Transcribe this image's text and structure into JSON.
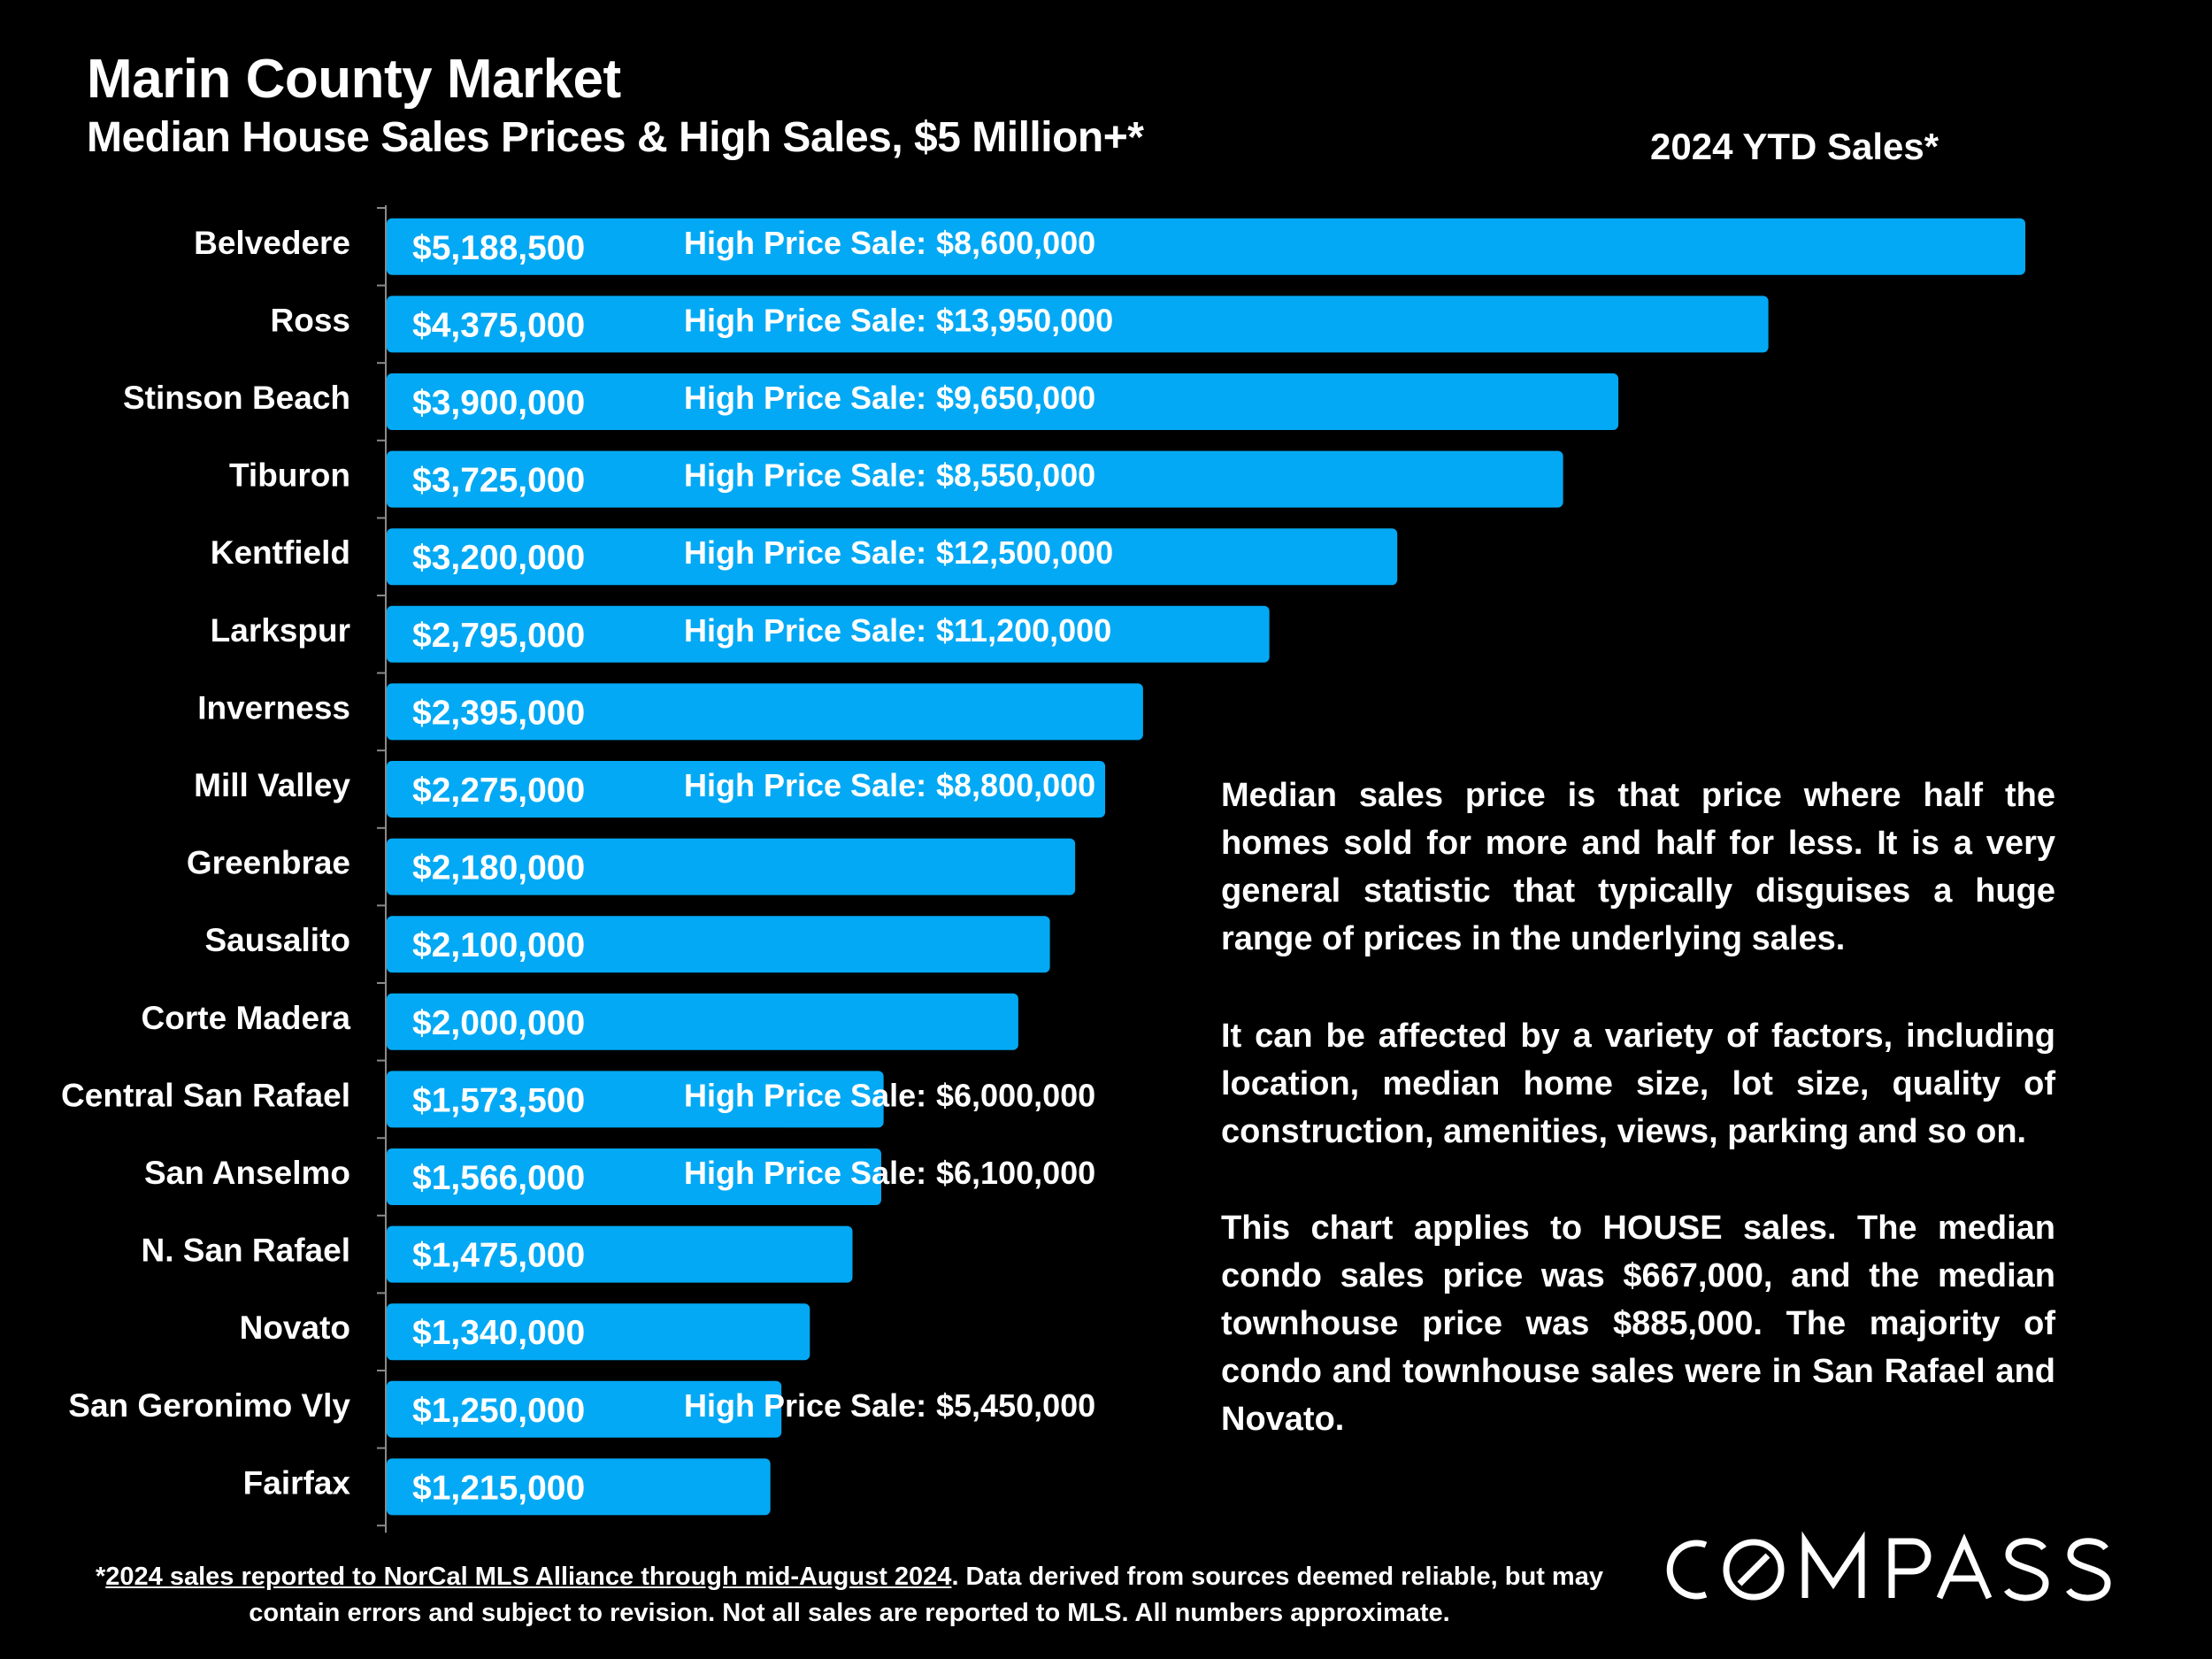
{
  "header": {
    "title": "Marin County Market",
    "subtitle": "Median House Sales Prices & High Sales, $5 Million+*",
    "ytd_label": "2024 YTD Sales*"
  },
  "colors": {
    "bar": "#03A9F4",
    "background": "#000000",
    "text": "#FFFFFF"
  },
  "chart_data": {
    "type": "bar",
    "orientation": "horizontal",
    "title": "Median House Sales Prices & High Sales, $5 Million+*",
    "series_name": "2024 YTD Sales*",
    "xlim": [
      0,
      5188500
    ],
    "high_sale_prefix": "High Price Sale:",
    "categories": [
      "Belvedere",
      "Ross",
      "Stinson Beach",
      "Tiburon",
      "Kentfield",
      "Larkspur",
      "Inverness",
      "Mill Valley",
      "Greenbrae",
      "Sausalito",
      "Corte Madera",
      "Central San Rafael",
      "San Anselmo",
      "N. San Rafael",
      "Novato",
      "San Geronimo Vly",
      "Fairfax"
    ],
    "values": [
      5188500,
      4375000,
      3900000,
      3725000,
      3200000,
      2795000,
      2395000,
      2275000,
      2180000,
      2100000,
      2000000,
      1573500,
      1566000,
      1475000,
      1340000,
      1250000,
      1215000
    ],
    "value_labels": [
      "$5,188,500",
      "$4,375,000",
      "$3,900,000",
      "$3,725,000",
      "$3,200,000",
      "$2,795,000",
      "$2,395,000",
      "$2,275,000",
      "$2,180,000",
      "$2,100,000",
      "$2,000,000",
      "$1,573,500",
      "$1,566,000",
      "$1,475,000",
      "$1,340,000",
      "$1,250,000",
      "$1,215,000"
    ],
    "high_sales": [
      "$8,600,000",
      "$13,950,000",
      "$9,650,000",
      "$8,550,000",
      "$12,500,000",
      "$11,200,000",
      null,
      "$8,800,000",
      null,
      null,
      null,
      "$6,000,000",
      "$6,100,000",
      null,
      null,
      "$5,450,000",
      null
    ]
  },
  "notes": {
    "p1": "Median sales price is that price where half the homes sold for more and half for less. It is a very general statistic that typically disguises a huge range of prices in the underlying sales.",
    "p2": "It can be affected by a variety of factors, including location, median home size, lot size, quality of construction, amenities, views, parking and so on.",
    "p3": "This chart applies to HOUSE sales. The median condo sales price was $667,000, and the median townhouse price was $885,000. The majority of condo and townhouse sales were in San Rafael and Novato."
  },
  "footnote": {
    "asterisk": "*",
    "link_text": "2024 sales reported to NorCal MLS Alliance through mid-August 2024",
    "rest": ". Data derived from sources deemed reliable, but may contain errors and subject to revision. Not all sales are reported to MLS. All numbers approximate."
  },
  "brand": {
    "name": "COMPASS",
    "logo_icon": "compass-logo"
  }
}
